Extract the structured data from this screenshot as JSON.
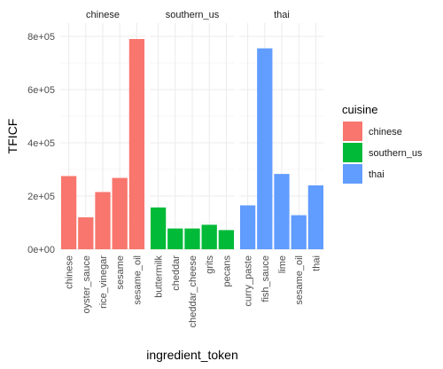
{
  "chart_data": {
    "type": "bar",
    "xlabel": "ingredient_token",
    "ylabel": "TFICF",
    "ylim": [
      0,
      850000
    ],
    "yticks": [
      0,
      200000,
      400000,
      600000,
      800000
    ],
    "ytick_labels": [
      "0e+00",
      "2e+05",
      "4e+05",
      "6e+05",
      "8e+05"
    ],
    "grid": true,
    "legend": {
      "title": "cuisine",
      "position": "right",
      "items": [
        {
          "label": "chinese",
          "color": "#F8766D"
        },
        {
          "label": "southern_us",
          "color": "#00BA38"
        },
        {
          "label": "thai",
          "color": "#619CFF"
        }
      ]
    },
    "facets": [
      {
        "name": "chinese",
        "color": "#F8766D",
        "categories": [
          "chinese",
          "oyster_sauce",
          "rice_vinegar",
          "sesame",
          "sesame_oil"
        ],
        "values": [
          275000,
          120000,
          215000,
          268000,
          790000
        ]
      },
      {
        "name": "southern_us",
        "color": "#00BA38",
        "categories": [
          "buttermilk",
          "cheddar",
          "cheddar_cheese",
          "grits",
          "pecans"
        ],
        "values": [
          157000,
          78000,
          78000,
          92000,
          72000
        ]
      },
      {
        "name": "thai",
        "color": "#619CFF",
        "categories": [
          "curry_paste",
          "fish_sauce",
          "lime",
          "sesame_oil",
          "thai"
        ],
        "values": [
          165000,
          755000,
          283000,
          128000,
          240000
        ]
      }
    ]
  }
}
